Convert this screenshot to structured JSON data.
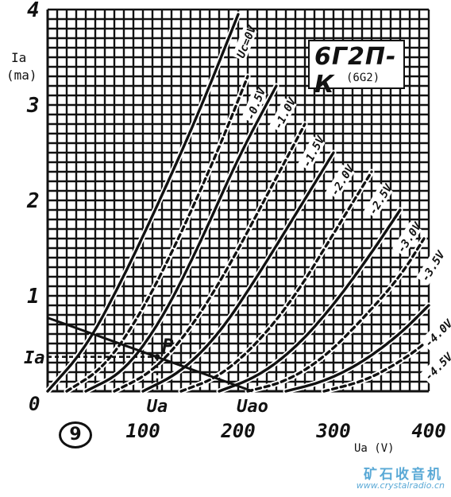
{
  "chart_data": {
    "type": "line",
    "title": "",
    "xlabel": "Ua (V)",
    "ylabel": "Ia (ma)",
    "xlim": [
      0,
      400
    ],
    "ylim": [
      0,
      4
    ],
    "grid": true,
    "x_ticks": [
      {
        "value": 0,
        "label": "0"
      },
      {
        "value": 100,
        "label": "100"
      },
      {
        "value": 200,
        "label": "200"
      },
      {
        "value": 300,
        "label": "300"
      },
      {
        "value": 400,
        "label": "400"
      }
    ],
    "y_ticks": [
      {
        "value": 1,
        "label": "1"
      },
      {
        "value": 2,
        "label": "2"
      },
      {
        "value": 3,
        "label": "3"
      },
      {
        "value": 4,
        "label": "4"
      }
    ],
    "series": [
      {
        "name": "Uc=0V",
        "dashed": false,
        "x": [
          0,
          40,
          80,
          120,
          160,
          200
        ],
        "y": [
          0.0,
          0.45,
          1.2,
          2.05,
          2.95,
          3.95
        ]
      },
      {
        "name": "-0.5V",
        "dashed": true,
        "x": [
          20,
          60,
          100,
          140,
          180,
          210
        ],
        "y": [
          0.0,
          0.25,
          0.85,
          1.65,
          2.55,
          3.3
        ]
      },
      {
        "name": "-1.0V",
        "dashed": false,
        "x": [
          40,
          80,
          120,
          160,
          200,
          240
        ],
        "y": [
          0.0,
          0.2,
          0.75,
          1.55,
          2.45,
          3.2
        ]
      },
      {
        "name": "-1.5V",
        "dashed": true,
        "x": [
          70,
          110,
          150,
          190,
          230,
          270
        ],
        "y": [
          0.0,
          0.2,
          0.65,
          1.3,
          2.05,
          2.8
        ]
      },
      {
        "name": "-2.0V",
        "dashed": false,
        "x": [
          100,
          140,
          180,
          220,
          260,
          300
        ],
        "y": [
          0.0,
          0.2,
          0.6,
          1.2,
          1.85,
          2.5
        ]
      },
      {
        "name": "-2.5V",
        "dashed": true,
        "x": [
          140,
          180,
          220,
          260,
          300,
          340
        ],
        "y": [
          0.0,
          0.15,
          0.5,
          1.0,
          1.65,
          2.3
        ]
      },
      {
        "name": "-3.0V",
        "dashed": false,
        "x": [
          180,
          220,
          260,
          300,
          340,
          370
        ],
        "y": [
          0.0,
          0.15,
          0.45,
          0.9,
          1.45,
          1.9
        ]
      },
      {
        "name": "-3.5V",
        "dashed": true,
        "x": [
          210,
          250,
          290,
          330,
          370,
          395
        ],
        "y": [
          0.0,
          0.1,
          0.35,
          0.75,
          1.2,
          1.6
        ]
      },
      {
        "name": "-4.0V",
        "dashed": false,
        "x": [
          250,
          290,
          330,
          370,
          400
        ],
        "y": [
          0.0,
          0.1,
          0.3,
          0.6,
          0.9
        ]
      },
      {
        "name": "-4.5V",
        "dashed": true,
        "x": [
          290,
          330,
          360,
          390,
          400
        ],
        "y": [
          0.0,
          0.1,
          0.25,
          0.45,
          0.55
        ]
      }
    ],
    "load_line": {
      "x": [
        0,
        215
      ],
      "y": [
        0.77,
        0.0
      ]
    },
    "operating_point": {
      "label": "P",
      "x": 115,
      "y": 0.36
    },
    "annotations": [
      {
        "text": "Ia",
        "axis": "y",
        "value": 0.36
      },
      {
        "text": "Ua",
        "axis": "x",
        "value": 115
      },
      {
        "text": "Uao",
        "axis": "x",
        "value": 215
      }
    ],
    "origin_label": "0"
  },
  "tube": {
    "name": "6Г2П-К",
    "alt": "(6G2)"
  },
  "figure_number": "9",
  "watermark": {
    "site_cn": "矿石收音机",
    "url": "www.crystalradio.cn"
  },
  "colors": {
    "ink": "#111111",
    "grid": "#111111",
    "watermark": "#5aa9d6"
  }
}
